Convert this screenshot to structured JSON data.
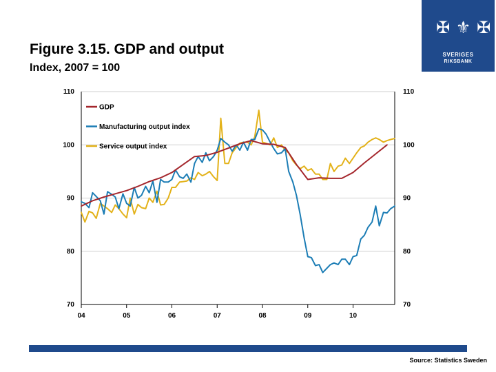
{
  "title": "Figure 3.15. GDP and output",
  "subtitle": "Index, 2007 = 100",
  "source": "Source: Statistics Sweden",
  "logo": {
    "line1": "SVERIGES",
    "line2": "RIKSBANK",
    "emblem": "✠ ⚜ ✠"
  },
  "colors": {
    "brand": "#1f4a8c",
    "gdp": "#a4262c",
    "manufacturing": "#1c7db5",
    "service": "#e3b21a",
    "grid": "#cfcfcf"
  },
  "chart_data": {
    "type": "line",
    "title": "Figure 3.15. GDP and output",
    "ylabel": "Index, 2007 = 100",
    "xlim": [
      2004.0,
      2010.92
    ],
    "ylim": [
      70,
      110
    ],
    "yticks": [
      70,
      80,
      90,
      100,
      110
    ],
    "ytick_labels": [
      "70",
      "80",
      "90",
      "100",
      "110"
    ],
    "xticks": [
      2004,
      2005,
      2006,
      2007,
      2008,
      2009,
      2010
    ],
    "xtick_labels": [
      "04",
      "05",
      "06",
      "07",
      "08",
      "09",
      "10"
    ],
    "legend": [
      "GDP",
      "Manufacturing output index",
      "Service output index"
    ],
    "legend_position": "top-left",
    "series": [
      {
        "name": "GDP",
        "x": [
          2004.0,
          2004.25,
          2004.5,
          2004.75,
          2005.0,
          2005.25,
          2005.5,
          2005.75,
          2006.0,
          2006.25,
          2006.5,
          2006.75,
          2007.0,
          2007.25,
          2007.5,
          2007.75,
          2008.0,
          2008.25,
          2008.5,
          2008.75,
          2009.0,
          2009.25,
          2009.5,
          2009.75,
          2010.0,
          2010.25,
          2010.5,
          2010.75
        ],
        "values": [
          88.5,
          89.5,
          90.2,
          90.8,
          91.4,
          92.2,
          93.1,
          93.8,
          94.8,
          96.3,
          97.8,
          98.0,
          98.6,
          99.4,
          100.2,
          100.8,
          100.2,
          100.1,
          99.5,
          96.3,
          93.5,
          93.8,
          93.7,
          93.7,
          94.8,
          96.6,
          98.3,
          100.0
        ]
      },
      {
        "name": "Manufacturing output index",
        "x": [
          2004.0,
          2004.08,
          2004.17,
          2004.25,
          2004.33,
          2004.42,
          2004.5,
          2004.58,
          2004.67,
          2004.75,
          2004.83,
          2004.92,
          2005.0,
          2005.08,
          2005.17,
          2005.25,
          2005.33,
          2005.42,
          2005.5,
          2005.58,
          2005.67,
          2005.75,
          2005.83,
          2005.92,
          2006.0,
          2006.08,
          2006.17,
          2006.25,
          2006.33,
          2006.42,
          2006.5,
          2006.58,
          2006.67,
          2006.75,
          2006.83,
          2006.92,
          2007.0,
          2007.08,
          2007.17,
          2007.25,
          2007.33,
          2007.42,
          2007.5,
          2007.58,
          2007.67,
          2007.75,
          2007.83,
          2007.92,
          2008.0,
          2008.08,
          2008.17,
          2008.25,
          2008.33,
          2008.42,
          2008.5,
          2008.58,
          2008.67,
          2008.75,
          2008.83,
          2008.92,
          2009.0,
          2009.08,
          2009.17,
          2009.25,
          2009.33,
          2009.42,
          2009.5,
          2009.58,
          2009.67,
          2009.75,
          2009.83,
          2009.92,
          2010.0,
          2010.08,
          2010.17,
          2010.25,
          2010.33,
          2010.42,
          2010.5,
          2010.58,
          2010.67,
          2010.75,
          2010.83,
          2010.92
        ],
        "values": [
          89.3,
          89.0,
          88.2,
          91.0,
          90.3,
          89.5,
          87.0,
          91.2,
          90.7,
          90.2,
          88.0,
          90.8,
          89.0,
          88.5,
          92.0,
          90.0,
          90.5,
          92.2,
          91.0,
          93.2,
          89.2,
          93.5,
          93.0,
          93.0,
          93.5,
          95.3,
          94.0,
          93.7,
          94.5,
          93.0,
          96.5,
          97.8,
          96.7,
          98.5,
          97.0,
          97.8,
          99.0,
          101.2,
          100.5,
          100.0,
          98.8,
          100.0,
          99.0,
          100.5,
          99.0,
          101.0,
          101.0,
          103.0,
          102.8,
          102.0,
          100.5,
          99.3,
          98.3,
          98.5,
          99.3,
          95.0,
          93.0,
          90.5,
          87.0,
          82.5,
          79.0,
          78.8,
          77.3,
          77.5,
          76.0,
          76.8,
          77.5,
          77.8,
          77.5,
          78.5,
          78.5,
          77.5,
          79.0,
          79.2,
          82.3,
          83.0,
          84.5,
          85.5,
          88.5,
          84.8,
          87.3,
          87.2,
          88.0,
          88.5
        ]
      },
      {
        "name": "Service output index",
        "x": [
          2004.0,
          2004.08,
          2004.17,
          2004.25,
          2004.33,
          2004.42,
          2004.5,
          2004.58,
          2004.67,
          2004.75,
          2004.83,
          2004.92,
          2005.0,
          2005.08,
          2005.17,
          2005.25,
          2005.33,
          2005.42,
          2005.5,
          2005.58,
          2005.67,
          2005.75,
          2005.83,
          2005.92,
          2006.0,
          2006.08,
          2006.17,
          2006.25,
          2006.33,
          2006.42,
          2006.5,
          2006.58,
          2006.67,
          2006.75,
          2006.83,
          2006.92,
          2007.0,
          2007.08,
          2007.17,
          2007.25,
          2007.33,
          2007.42,
          2007.5,
          2007.58,
          2007.67,
          2007.75,
          2007.83,
          2007.92,
          2008.0,
          2008.08,
          2008.17,
          2008.25,
          2008.33,
          2008.42,
          2008.5,
          2008.58,
          2008.67,
          2008.75,
          2008.83,
          2008.92,
          2009.0,
          2009.08,
          2009.17,
          2009.25,
          2009.33,
          2009.42,
          2009.5,
          2009.58,
          2009.67,
          2009.75,
          2009.83,
          2009.92,
          2010.0,
          2010.08,
          2010.17,
          2010.25,
          2010.33,
          2010.42,
          2010.5,
          2010.58,
          2010.67,
          2010.75,
          2010.83,
          2010.92
        ],
        "values": [
          87.3,
          85.5,
          87.5,
          87.2,
          86.2,
          89.0,
          88.5,
          88.0,
          87.3,
          88.7,
          88.0,
          87.0,
          86.3,
          90.0,
          87.0,
          88.8,
          88.2,
          88.0,
          90.0,
          89.2,
          91.3,
          88.7,
          88.8,
          90.0,
          92.0,
          92.0,
          93.0,
          93.1,
          93.2,
          93.8,
          93.5,
          94.8,
          94.2,
          94.5,
          95.0,
          94.0,
          93.3,
          105.0,
          96.5,
          96.5,
          98.5,
          99.5,
          100.3,
          100.5,
          100.5,
          100.0,
          101.5,
          106.5,
          100.5,
          100.3,
          100.0,
          101.3,
          99.5,
          100.0,
          99.0,
          98.5,
          97.0,
          96.2,
          95.5,
          96.0,
          95.2,
          95.5,
          94.5,
          94.5,
          93.5,
          93.5,
          96.5,
          95.0,
          96.0,
          96.2,
          97.5,
          96.5,
          97.5,
          98.5,
          99.5,
          99.8,
          100.5,
          101.0,
          101.3,
          101.0,
          100.5,
          100.8,
          101.0,
          101.2
        ]
      }
    ]
  }
}
